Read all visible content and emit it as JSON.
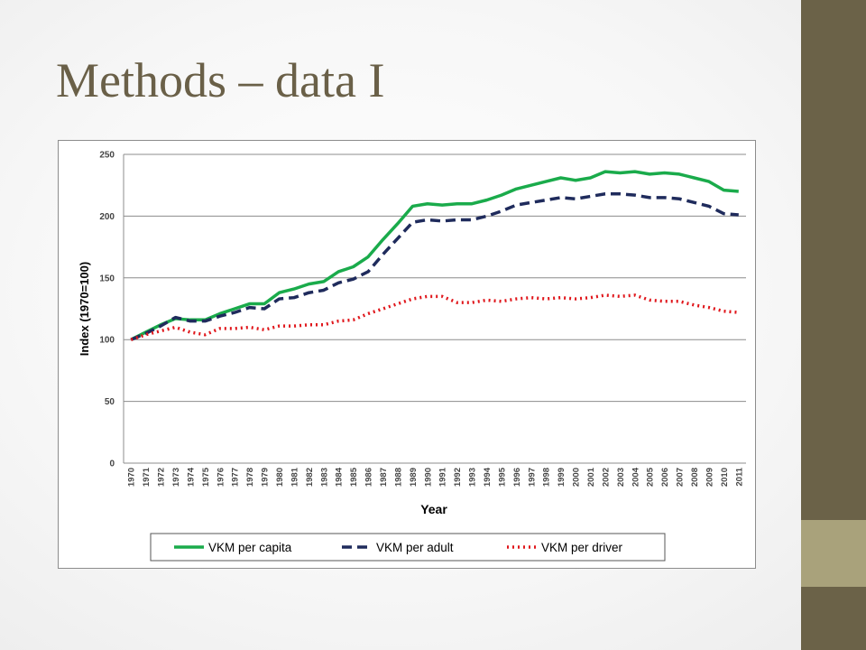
{
  "slide": {
    "title": "Methods – data I"
  },
  "colors": {
    "sidebar_dark": "#6b6248",
    "sidebar_light": "#a9a27b",
    "title": "#6a6048"
  },
  "chart_data": {
    "type": "line",
    "title": "",
    "xlabel": "Year",
    "ylabel": "Index (1970=100)",
    "ylim": [
      0,
      250
    ],
    "yticks": [
      0,
      50,
      100,
      150,
      200,
      250
    ],
    "grid": "horizontal",
    "legend_position": "bottom",
    "categories": [
      "1970",
      "1971",
      "1972",
      "1973",
      "1974",
      "1975",
      "1976",
      "1977",
      "1978",
      "1979",
      "1980",
      "1981",
      "1982",
      "1983",
      "1984",
      "1985",
      "1986",
      "1987",
      "1988",
      "1989",
      "1990",
      "1991",
      "1992",
      "1993",
      "1994",
      "1995",
      "1996",
      "1997",
      "1998",
      "1999",
      "2000",
      "2001",
      "2002",
      "2003",
      "2004",
      "2005",
      "2006",
      "2007",
      "2008",
      "2009",
      "2010",
      "2011"
    ],
    "series": [
      {
        "name": "VKM per capita",
        "color": "#1aab4b",
        "style": "solid",
        "values": [
          100,
          106,
          112,
          117,
          116,
          116,
          121,
          125,
          129,
          129,
          138,
          141,
          145,
          147,
          155,
          159,
          167,
          181,
          194,
          208,
          210,
          209,
          210,
          210,
          213,
          217,
          222,
          225,
          228,
          231,
          229,
          231,
          236,
          235,
          236,
          234,
          235,
          234,
          231,
          228,
          221,
          220
        ]
      },
      {
        "name": "VKM per adult",
        "color": "#1f2b5c",
        "style": "dashed",
        "values": [
          100,
          105,
          111,
          118,
          115,
          115,
          119,
          122,
          126,
          125,
          133,
          134,
          138,
          140,
          146,
          149,
          155,
          169,
          182,
          195,
          197,
          196,
          197,
          197,
          200,
          204,
          209,
          211,
          213,
          215,
          214,
          216,
          218,
          218,
          217,
          215,
          215,
          214,
          211,
          208,
          202,
          201
        ]
      },
      {
        "name": "VKM per driver",
        "color": "#e0161b",
        "style": "dotted",
        "values": [
          100,
          104,
          107,
          110,
          106,
          104,
          109,
          109,
          110,
          108,
          111,
          111,
          112,
          112,
          115,
          116,
          121,
          125,
          129,
          133,
          135,
          135,
          130,
          130,
          132,
          131,
          133,
          134,
          133,
          134,
          133,
          134,
          136,
          135,
          136,
          132,
          131,
          131,
          128,
          126,
          123,
          122
        ]
      }
    ]
  }
}
